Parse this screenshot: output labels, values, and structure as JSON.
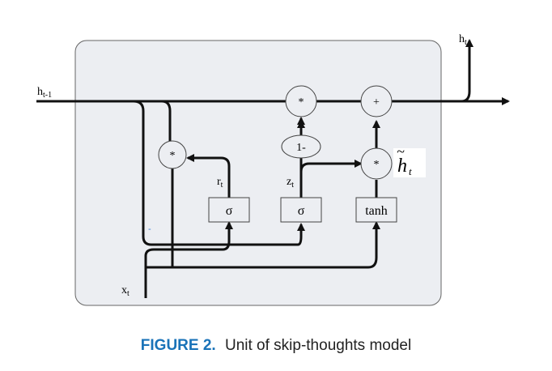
{
  "diagram": {
    "inputs": {
      "h_prev": "h",
      "h_prev_sub": "t-1",
      "x": "x",
      "x_sub": "t"
    },
    "output": {
      "h": "h",
      "h_sub": "t"
    },
    "nodes": {
      "mult_reset": "*",
      "mult_update": "*",
      "one_minus": "1-",
      "mult_candidate": "*",
      "add": "+"
    },
    "gates": {
      "reset": "σ",
      "update": "σ",
      "candidate": "tanh"
    },
    "gate_labels": {
      "r": "r",
      "r_sub": "t",
      "z": "z",
      "z_sub": "t"
    },
    "candidate_label": {
      "h": "h",
      "tilde": "~",
      "sub": "t"
    },
    "stray_mark": "-"
  },
  "caption": {
    "figure": "FIGURE 2.",
    "text": "Unit of skip-thoughts model"
  },
  "colors": {
    "box_fill": "#eceef2",
    "line": "#111111",
    "caption_accent": "#1a73b8"
  }
}
